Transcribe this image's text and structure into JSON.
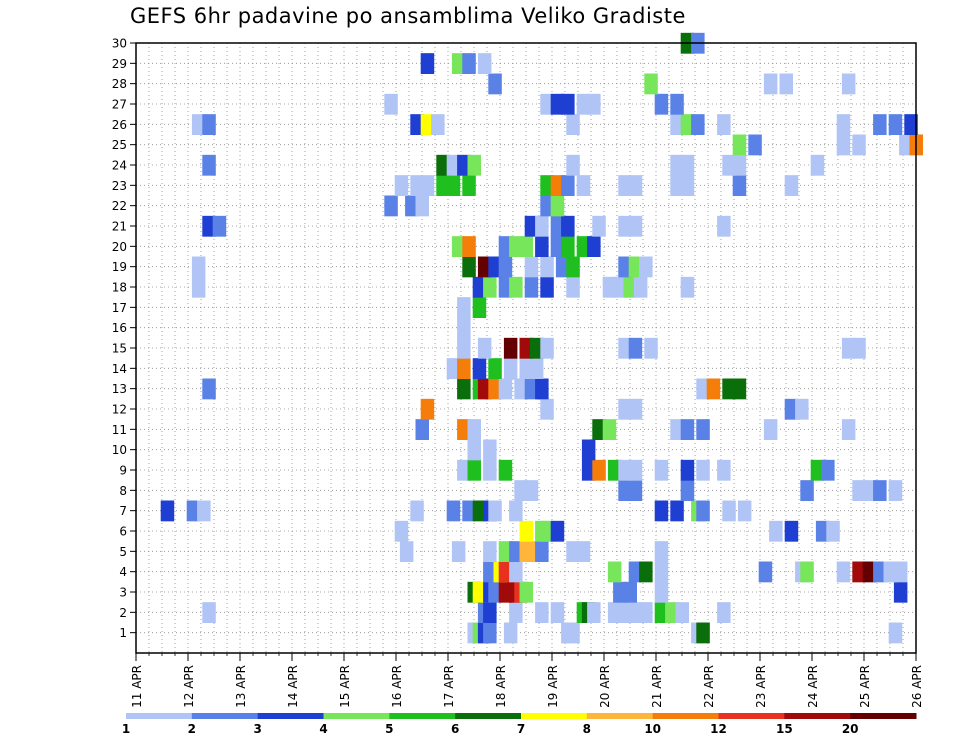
{
  "chart_data": {
    "type": "heatmap",
    "title": "GEFS 6hr padavine po ansamblima Veliko Gradiste",
    "xlabel": "",
    "ylabel": "",
    "x_ticks": [
      "11 APR",
      "12 APR",
      "13 APR",
      "14 APR",
      "15 APR",
      "16 APR",
      "17 APR",
      "18 APR",
      "19 APR",
      "20 APR",
      "21 APR",
      "22 APR",
      "23 APR",
      "24 APR",
      "25 APR",
      "26 APR"
    ],
    "y_ticks": [
      "1",
      "2",
      "3",
      "4",
      "5",
      "6",
      "7",
      "8",
      "9",
      "10",
      "11",
      "12",
      "13",
      "14",
      "15",
      "16",
      "17",
      "18",
      "19",
      "20",
      "21",
      "22",
      "23",
      "24",
      "25",
      "26",
      "27",
      "28",
      "29",
      "30"
    ],
    "x_range_days": [
      11,
      26
    ],
    "y_range": [
      0,
      30
    ],
    "grid": true,
    "colorbar": {
      "position": "bottom",
      "labels": [
        "1",
        "2",
        "3",
        "4",
        "5",
        "6",
        "7",
        "8",
        "10",
        "12",
        "15",
        "20"
      ],
      "colors": [
        "#b0c4f5",
        "#5a82e6",
        "#1e3fd2",
        "#78e65a",
        "#1fbf1f",
        "#0a6e0a",
        "#ffff00",
        "#ffb43c",
        "#f57d0a",
        "#e6321e",
        "#a00a0a",
        "#640000"
      ]
    },
    "cells": [
      [
        17.5,
        1,
        1
      ],
      [
        17.6,
        1,
        4
      ],
      [
        17.7,
        1,
        3
      ],
      [
        17.8,
        1,
        2
      ],
      [
        18.2,
        1,
        1
      ],
      [
        19.3,
        1,
        1
      ],
      [
        19.4,
        1,
        1
      ],
      [
        21.8,
        1,
        1
      ],
      [
        21.9,
        1,
        6
      ],
      [
        25.6,
        1,
        1
      ],
      [
        12.4,
        2,
        1
      ],
      [
        17.7,
        2,
        2
      ],
      [
        17.8,
        2,
        3
      ],
      [
        18.3,
        2,
        1
      ],
      [
        18.8,
        2,
        1
      ],
      [
        19.1,
        2,
        1
      ],
      [
        19.6,
        2,
        5
      ],
      [
        19.7,
        2,
        6
      ],
      [
        19.8,
        2,
        1
      ],
      [
        20.2,
        2,
        1
      ],
      [
        20.4,
        2,
        1
      ],
      [
        20.6,
        2,
        1
      ],
      [
        20.8,
        2,
        1
      ],
      [
        21.1,
        2,
        5
      ],
      [
        21.3,
        2,
        4
      ],
      [
        21.5,
        2,
        1
      ],
      [
        22.3,
        2,
        1
      ],
      [
        17.5,
        3,
        6
      ],
      [
        17.6,
        3,
        7
      ],
      [
        17.8,
        3,
        3
      ],
      [
        17.9,
        3,
        2
      ],
      [
        18.1,
        3,
        11
      ],
      [
        18.3,
        3,
        11
      ],
      [
        18.4,
        3,
        10
      ],
      [
        18.5,
        3,
        4
      ],
      [
        20.3,
        3,
        2
      ],
      [
        20.5,
        3,
        2
      ],
      [
        21.1,
        3,
        1
      ],
      [
        25.7,
        3,
        3
      ],
      [
        17.8,
        4,
        2
      ],
      [
        18,
        4,
        7
      ],
      [
        18.1,
        4,
        10
      ],
      [
        18.3,
        4,
        1
      ],
      [
        20.2,
        4,
        4
      ],
      [
        20.6,
        4,
        2
      ],
      [
        20.8,
        4,
        6
      ],
      [
        21.1,
        4,
        1
      ],
      [
        23.1,
        4,
        2
      ],
      [
        23.8,
        4,
        1
      ],
      [
        23.9,
        4,
        4
      ],
      [
        24.6,
        4,
        1
      ],
      [
        24.9,
        4,
        11
      ],
      [
        25.1,
        4,
        12
      ],
      [
        25.3,
        4,
        2
      ],
      [
        25.5,
        4,
        1
      ],
      [
        25.7,
        4,
        1
      ],
      [
        16.2,
        5,
        1
      ],
      [
        17.2,
        5,
        1
      ],
      [
        17.8,
        5,
        1
      ],
      [
        18.1,
        5,
        4
      ],
      [
        18.3,
        5,
        2
      ],
      [
        18.5,
        5,
        8
      ],
      [
        18.6,
        5,
        8
      ],
      [
        18.8,
        5,
        2
      ],
      [
        19.4,
        5,
        1
      ],
      [
        19.6,
        5,
        1
      ],
      [
        21.1,
        5,
        1
      ],
      [
        16.1,
        6,
        1
      ],
      [
        18.5,
        6,
        7
      ],
      [
        18.8,
        6,
        4
      ],
      [
        18.9,
        6,
        4
      ],
      [
        19.1,
        6,
        3
      ],
      [
        23.3,
        6,
        1
      ],
      [
        23.6,
        6,
        3
      ],
      [
        24.2,
        6,
        2
      ],
      [
        24.4,
        6,
        1
      ],
      [
        11.6,
        7,
        3
      ],
      [
        12.1,
        7,
        2
      ],
      [
        12.3,
        7,
        1
      ],
      [
        16.4,
        7,
        1
      ],
      [
        17.1,
        7,
        2
      ],
      [
        17.4,
        7,
        2
      ],
      [
        17.6,
        7,
        6
      ],
      [
        17.8,
        7,
        3
      ],
      [
        17.9,
        7,
        1
      ],
      [
        18.3,
        7,
        1
      ],
      [
        21.1,
        7,
        3
      ],
      [
        21.4,
        7,
        3
      ],
      [
        21.8,
        7,
        4
      ],
      [
        21.9,
        7,
        2
      ],
      [
        22.4,
        7,
        1
      ],
      [
        22.7,
        7,
        1
      ],
      [
        18.4,
        8,
        1
      ],
      [
        18.6,
        8,
        1
      ],
      [
        20.4,
        8,
        2
      ],
      [
        20.6,
        8,
        2
      ],
      [
        21.6,
        8,
        2
      ],
      [
        23.9,
        8,
        2
      ],
      [
        24.9,
        8,
        1
      ],
      [
        25.1,
        8,
        1
      ],
      [
        25.3,
        8,
        2
      ],
      [
        25.6,
        8,
        1
      ],
      [
        17.3,
        9,
        1
      ],
      [
        17.5,
        9,
        5
      ],
      [
        17.8,
        9,
        1
      ],
      [
        18.1,
        9,
        5
      ],
      [
        19.7,
        9,
        3
      ],
      [
        19.9,
        9,
        9
      ],
      [
        20.2,
        9,
        5
      ],
      [
        20.4,
        9,
        1
      ],
      [
        20.6,
        9,
        1
      ],
      [
        21.1,
        9,
        1
      ],
      [
        21.6,
        9,
        3
      ],
      [
        21.9,
        9,
        1
      ],
      [
        22.3,
        9,
        1
      ],
      [
        24.1,
        9,
        5
      ],
      [
        24.3,
        9,
        2
      ],
      [
        17.5,
        10,
        1
      ],
      [
        17.8,
        10,
        1
      ],
      [
        19.7,
        10,
        3
      ],
      [
        16.5,
        11,
        2
      ],
      [
        17.3,
        11,
        9
      ],
      [
        17.5,
        11,
        1
      ],
      [
        19.9,
        11,
        6
      ],
      [
        20.1,
        11,
        4
      ],
      [
        21.4,
        11,
        1
      ],
      [
        21.6,
        11,
        2
      ],
      [
        21.9,
        11,
        2
      ],
      [
        23.2,
        11,
        1
      ],
      [
        24.7,
        11,
        1
      ],
      [
        16.6,
        12,
        9
      ],
      [
        18.9,
        12,
        1
      ],
      [
        20.4,
        12,
        1
      ],
      [
        20.6,
        12,
        1
      ],
      [
        23.6,
        12,
        2
      ],
      [
        23.8,
        12,
        1
      ],
      [
        12.4,
        13,
        2
      ],
      [
        17.3,
        13,
        6
      ],
      [
        17.6,
        13,
        5
      ],
      [
        17.7,
        13,
        11
      ],
      [
        17.9,
        13,
        9
      ],
      [
        18.1,
        13,
        1
      ],
      [
        18.4,
        13,
        1
      ],
      [
        18.6,
        13,
        2
      ],
      [
        18.8,
        13,
        3
      ],
      [
        21.9,
        13,
        1
      ],
      [
        22.1,
        13,
        9
      ],
      [
        22.4,
        13,
        6
      ],
      [
        22.6,
        13,
        6
      ],
      [
        17.1,
        14,
        1
      ],
      [
        17.3,
        14,
        9
      ],
      [
        17.6,
        14,
        3
      ],
      [
        17.9,
        14,
        5
      ],
      [
        18.2,
        14,
        1
      ],
      [
        18.5,
        14,
        1
      ],
      [
        18.7,
        14,
        1
      ],
      [
        17.3,
        15,
        1
      ],
      [
        17.7,
        15,
        1
      ],
      [
        18.2,
        15,
        12
      ],
      [
        18.5,
        15,
        11
      ],
      [
        18.7,
        15,
        6
      ],
      [
        18.9,
        15,
        1
      ],
      [
        20.4,
        15,
        1
      ],
      [
        20.6,
        15,
        2
      ],
      [
        20.9,
        15,
        1
      ],
      [
        24.7,
        15,
        1
      ],
      [
        24.9,
        15,
        1
      ],
      [
        17.3,
        16,
        1
      ],
      [
        17.6,
        17,
        5
      ],
      [
        17.3,
        17,
        1
      ],
      [
        12.2,
        18,
        1
      ],
      [
        17.6,
        18,
        3
      ],
      [
        17.8,
        18,
        4
      ],
      [
        18.1,
        18,
        2
      ],
      [
        18.3,
        18,
        4
      ],
      [
        18.6,
        18,
        2
      ],
      [
        18.9,
        18,
        3
      ],
      [
        19.4,
        18,
        1
      ],
      [
        20.1,
        18,
        1
      ],
      [
        20.3,
        18,
        1
      ],
      [
        20.5,
        18,
        4
      ],
      [
        20.7,
        18,
        1
      ],
      [
        21.6,
        18,
        1
      ],
      [
        12.2,
        19,
        1
      ],
      [
        17.4,
        19,
        6
      ],
      [
        17.7,
        19,
        12
      ],
      [
        17.9,
        19,
        3
      ],
      [
        18.1,
        19,
        2
      ],
      [
        18.6,
        19,
        1
      ],
      [
        18.9,
        19,
        1
      ],
      [
        19.2,
        19,
        2
      ],
      [
        19.4,
        19,
        5
      ],
      [
        20.4,
        19,
        2
      ],
      [
        20.6,
        19,
        4
      ],
      [
        20.8,
        19,
        1
      ],
      [
        17.2,
        20,
        4
      ],
      [
        17.4,
        20,
        9
      ],
      [
        18.1,
        20,
        2
      ],
      [
        18.3,
        20,
        4
      ],
      [
        18.5,
        20,
        4
      ],
      [
        18.8,
        20,
        3
      ],
      [
        19.1,
        20,
        2
      ],
      [
        19.3,
        20,
        5
      ],
      [
        19.6,
        20,
        5
      ],
      [
        19.8,
        20,
        3
      ],
      [
        12.4,
        21,
        3
      ],
      [
        12.6,
        21,
        2
      ],
      [
        18.6,
        21,
        3
      ],
      [
        18.8,
        21,
        1
      ],
      [
        19.1,
        21,
        2
      ],
      [
        19.3,
        21,
        3
      ],
      [
        19.9,
        21,
        1
      ],
      [
        20.4,
        21,
        1
      ],
      [
        20.6,
        21,
        1
      ],
      [
        22.3,
        21,
        1
      ],
      [
        15.9,
        22,
        2
      ],
      [
        16.3,
        22,
        2
      ],
      [
        16.5,
        22,
        1
      ],
      [
        18.9,
        22,
        2
      ],
      [
        19.1,
        22,
        4
      ],
      [
        16.1,
        23,
        1
      ],
      [
        16.4,
        23,
        1
      ],
      [
        16.6,
        23,
        1
      ],
      [
        16.9,
        23,
        5
      ],
      [
        17.1,
        23,
        5
      ],
      [
        17.4,
        23,
        5
      ],
      [
        18.9,
        23,
        5
      ],
      [
        19.1,
        23,
        9
      ],
      [
        19.3,
        23,
        2
      ],
      [
        19.6,
        23,
        1
      ],
      [
        20.4,
        23,
        1
      ],
      [
        20.6,
        23,
        1
      ],
      [
        21.4,
        23,
        1
      ],
      [
        21.6,
        23,
        1
      ],
      [
        22.6,
        23,
        2
      ],
      [
        23.6,
        23,
        1
      ],
      [
        12.4,
        24,
        2
      ],
      [
        16.9,
        24,
        6
      ],
      [
        17.1,
        24,
        1
      ],
      [
        17.3,
        24,
        3
      ],
      [
        17.5,
        24,
        4
      ],
      [
        19.4,
        24,
        1
      ],
      [
        21.4,
        24,
        1
      ],
      [
        21.6,
        24,
        1
      ],
      [
        22.4,
        24,
        1
      ],
      [
        22.6,
        24,
        1
      ],
      [
        24.1,
        24,
        1
      ],
      [
        22.6,
        25,
        4
      ],
      [
        22.9,
        25,
        2
      ],
      [
        24.6,
        25,
        1
      ],
      [
        24.9,
        25,
        1
      ],
      [
        25.8,
        25,
        1
      ],
      [
        26.0,
        25,
        9
      ],
      [
        12.2,
        26,
        1
      ],
      [
        12.4,
        26,
        2
      ],
      [
        16.4,
        26,
        3
      ],
      [
        16.6,
        26,
        7
      ],
      [
        16.8,
        26,
        1
      ],
      [
        19.4,
        26,
        1
      ],
      [
        21.4,
        26,
        1
      ],
      [
        21.6,
        26,
        4
      ],
      [
        21.8,
        26,
        2
      ],
      [
        22.3,
        26,
        1
      ],
      [
        24.6,
        26,
        1
      ],
      [
        25.3,
        26,
        2
      ],
      [
        25.6,
        26,
        2
      ],
      [
        25.9,
        26,
        3
      ],
      [
        15.9,
        27,
        1
      ],
      [
        18.9,
        27,
        1
      ],
      [
        19.1,
        27,
        3
      ],
      [
        19.3,
        27,
        3
      ],
      [
        19.6,
        27,
        1
      ],
      [
        19.8,
        27,
        1
      ],
      [
        21.1,
        27,
        2
      ],
      [
        21.4,
        27,
        2
      ],
      [
        17.9,
        28,
        2
      ],
      [
        20.9,
        28,
        4
      ],
      [
        23.2,
        28,
        1
      ],
      [
        23.5,
        28,
        1
      ],
      [
        24.7,
        28,
        1
      ],
      [
        16.6,
        29,
        3
      ],
      [
        17.2,
        29,
        4
      ],
      [
        17.4,
        29,
        2
      ],
      [
        17.7,
        29,
        1
      ],
      [
        21.6,
        30,
        6
      ],
      [
        21.8,
        30,
        2
      ]
    ]
  }
}
